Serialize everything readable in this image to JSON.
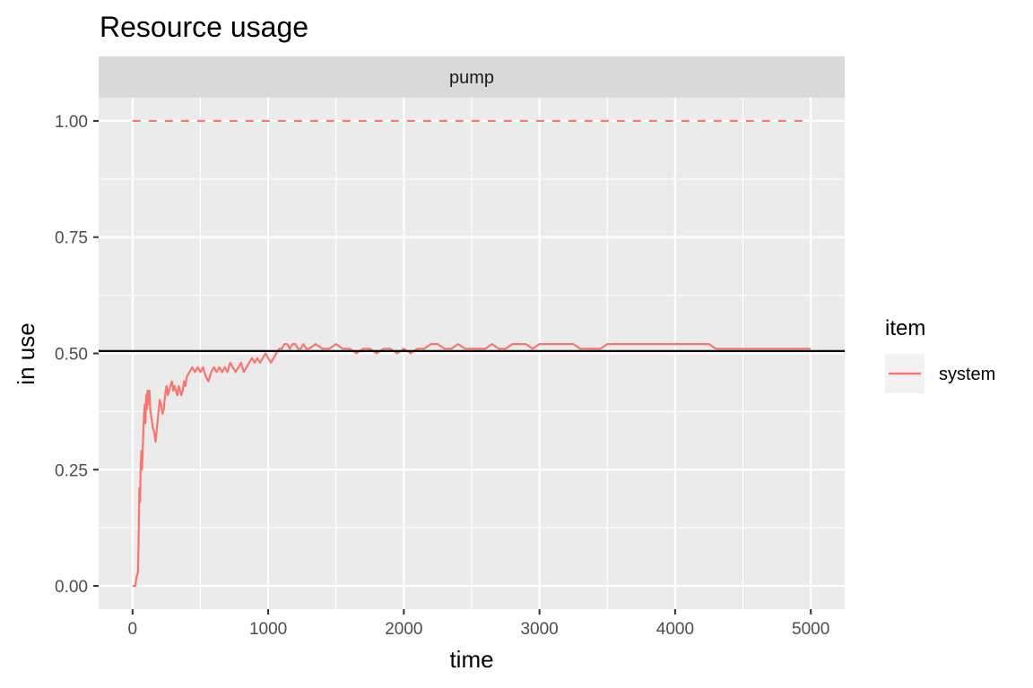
{
  "chart_data": {
    "type": "line",
    "title": "Resource usage",
    "facet": "pump",
    "xlabel": "time",
    "ylabel": "in use",
    "xlim": [
      -250,
      5250
    ],
    "ylim": [
      -0.05,
      1.05
    ],
    "x_ticks": [
      0,
      1000,
      2000,
      3000,
      4000,
      5000
    ],
    "x_tick_labels": [
      "0",
      "1000",
      "2000",
      "3000",
      "4000",
      "5000"
    ],
    "y_ticks": [
      0,
      0.25,
      0.5,
      0.75,
      1.0
    ],
    "y_tick_labels": [
      "0.00",
      "0.25",
      "0.50",
      "0.75",
      "1.00"
    ],
    "grid": true,
    "legend": {
      "title": "item",
      "position": "right",
      "entries": [
        "system"
      ]
    },
    "colors": {
      "system": "#F8766D",
      "reference": "#000000",
      "panel": "#EBEBEB",
      "strip": "#D9D9D9",
      "grid": "#FFFFFF"
    },
    "capacity": {
      "y": 1.0,
      "x_range": [
        0,
        5000
      ],
      "style": "dashed"
    },
    "reference_line": {
      "y": 0.505,
      "style": "solid"
    },
    "series": [
      {
        "name": "system",
        "points": [
          [
            0,
            0
          ],
          [
            10,
            0
          ],
          [
            20,
            0
          ],
          [
            30,
            0.02
          ],
          [
            40,
            0.03
          ],
          [
            45,
            0.1
          ],
          [
            50,
            0.21
          ],
          [
            55,
            0.18
          ],
          [
            60,
            0.26
          ],
          [
            65,
            0.29
          ],
          [
            70,
            0.25
          ],
          [
            75,
            0.29
          ],
          [
            80,
            0.34
          ],
          [
            85,
            0.37
          ],
          [
            90,
            0.39
          ],
          [
            95,
            0.35
          ],
          [
            100,
            0.41
          ],
          [
            105,
            0.38
          ],
          [
            110,
            0.42
          ],
          [
            115,
            0.39
          ],
          [
            120,
            0.41
          ],
          [
            125,
            0.42
          ],
          [
            130,
            0.38
          ],
          [
            140,
            0.36
          ],
          [
            150,
            0.34
          ],
          [
            160,
            0.33
          ],
          [
            170,
            0.31
          ],
          [
            180,
            0.34
          ],
          [
            190,
            0.37
          ],
          [
            200,
            0.4
          ],
          [
            210,
            0.39
          ],
          [
            220,
            0.37
          ],
          [
            230,
            0.38
          ],
          [
            240,
            0.41
          ],
          [
            250,
            0.43
          ],
          [
            260,
            0.41
          ],
          [
            270,
            0.42
          ],
          [
            280,
            0.43
          ],
          [
            290,
            0.44
          ],
          [
            300,
            0.42
          ],
          [
            310,
            0.43
          ],
          [
            320,
            0.42
          ],
          [
            330,
            0.41
          ],
          [
            340,
            0.43
          ],
          [
            350,
            0.42
          ],
          [
            360,
            0.41
          ],
          [
            370,
            0.42
          ],
          [
            380,
            0.44
          ],
          [
            390,
            0.43
          ],
          [
            400,
            0.45
          ],
          [
            420,
            0.46
          ],
          [
            440,
            0.47
          ],
          [
            460,
            0.46
          ],
          [
            480,
            0.47
          ],
          [
            500,
            0.46
          ],
          [
            520,
            0.47
          ],
          [
            540,
            0.45
          ],
          [
            560,
            0.44
          ],
          [
            580,
            0.46
          ],
          [
            600,
            0.47
          ],
          [
            620,
            0.46
          ],
          [
            640,
            0.47
          ],
          [
            660,
            0.46
          ],
          [
            680,
            0.47
          ],
          [
            700,
            0.46
          ],
          [
            720,
            0.48
          ],
          [
            740,
            0.47
          ],
          [
            760,
            0.46
          ],
          [
            780,
            0.47
          ],
          [
            800,
            0.48
          ],
          [
            820,
            0.46
          ],
          [
            840,
            0.47
          ],
          [
            860,
            0.48
          ],
          [
            880,
            0.49
          ],
          [
            900,
            0.48
          ],
          [
            920,
            0.49
          ],
          [
            940,
            0.48
          ],
          [
            960,
            0.49
          ],
          [
            980,
            0.5
          ],
          [
            1000,
            0.49
          ],
          [
            1020,
            0.48
          ],
          [
            1040,
            0.49
          ],
          [
            1060,
            0.5
          ],
          [
            1080,
            0.51
          ],
          [
            1100,
            0.51
          ],
          [
            1120,
            0.52
          ],
          [
            1140,
            0.52
          ],
          [
            1160,
            0.51
          ],
          [
            1180,
            0.52
          ],
          [
            1200,
            0.52
          ],
          [
            1220,
            0.51
          ],
          [
            1240,
            0.51
          ],
          [
            1260,
            0.52
          ],
          [
            1280,
            0.51
          ],
          [
            1300,
            0.51
          ],
          [
            1350,
            0.52
          ],
          [
            1400,
            0.51
          ],
          [
            1450,
            0.51
          ],
          [
            1500,
            0.52
          ],
          [
            1550,
            0.51
          ],
          [
            1600,
            0.51
          ],
          [
            1650,
            0.5
          ],
          [
            1700,
            0.51
          ],
          [
            1750,
            0.51
          ],
          [
            1800,
            0.5
          ],
          [
            1850,
            0.51
          ],
          [
            1900,
            0.51
          ],
          [
            1950,
            0.5
          ],
          [
            2000,
            0.51
          ],
          [
            2050,
            0.5
          ],
          [
            2100,
            0.51
          ],
          [
            2150,
            0.51
          ],
          [
            2200,
            0.52
          ],
          [
            2250,
            0.52
          ],
          [
            2300,
            0.51
          ],
          [
            2350,
            0.51
          ],
          [
            2400,
            0.52
          ],
          [
            2450,
            0.51
          ],
          [
            2500,
            0.51
          ],
          [
            2550,
            0.51
          ],
          [
            2600,
            0.51
          ],
          [
            2650,
            0.52
          ],
          [
            2700,
            0.51
          ],
          [
            2750,
            0.51
          ],
          [
            2800,
            0.52
          ],
          [
            2850,
            0.52
          ],
          [
            2900,
            0.52
          ],
          [
            2950,
            0.51
          ],
          [
            3000,
            0.52
          ],
          [
            3050,
            0.52
          ],
          [
            3100,
            0.52
          ],
          [
            3150,
            0.52
          ],
          [
            3200,
            0.52
          ],
          [
            3250,
            0.52
          ],
          [
            3300,
            0.51
          ],
          [
            3350,
            0.51
          ],
          [
            3400,
            0.51
          ],
          [
            3450,
            0.51
          ],
          [
            3500,
            0.52
          ],
          [
            3550,
            0.52
          ],
          [
            3600,
            0.52
          ],
          [
            3650,
            0.52
          ],
          [
            3700,
            0.52
          ],
          [
            3750,
            0.52
          ],
          [
            3800,
            0.52
          ],
          [
            3850,
            0.52
          ],
          [
            3900,
            0.52
          ],
          [
            3950,
            0.52
          ],
          [
            4000,
            0.52
          ],
          [
            4050,
            0.52
          ],
          [
            4100,
            0.52
          ],
          [
            4150,
            0.52
          ],
          [
            4200,
            0.52
          ],
          [
            4250,
            0.52
          ],
          [
            4300,
            0.51
          ],
          [
            4350,
            0.51
          ],
          [
            4400,
            0.51
          ],
          [
            4450,
            0.51
          ],
          [
            4500,
            0.51
          ],
          [
            4550,
            0.51
          ],
          [
            4600,
            0.51
          ],
          [
            4650,
            0.51
          ],
          [
            4700,
            0.51
          ],
          [
            4750,
            0.51
          ],
          [
            4800,
            0.51
          ],
          [
            4850,
            0.51
          ],
          [
            4900,
            0.51
          ],
          [
            4950,
            0.51
          ],
          [
            5000,
            0.51
          ]
        ]
      }
    ]
  }
}
